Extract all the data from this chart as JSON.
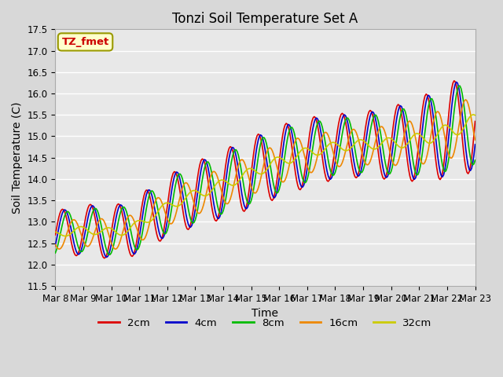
{
  "title": "Tonzi Soil Temperature Set A",
  "ylabel": "Soil Temperature (C)",
  "xlabel": "Time",
  "ylim": [
    11.5,
    17.5
  ],
  "n_days": 15,
  "x_tick_labels": [
    "Mar 8",
    "Mar 9",
    "Mar 10",
    "Mar 11",
    "Mar 12",
    "Mar 13",
    "Mar 14",
    "Mar 15",
    "Mar 16",
    "Mar 17",
    "Mar 18",
    "Mar 19",
    "Mar 20",
    "Mar 21",
    "Mar 22",
    "Mar 23"
  ],
  "colors": {
    "2cm": "#dd0000",
    "4cm": "#0000cc",
    "8cm": "#00bb00",
    "16cm": "#ee8800",
    "32cm": "#cccc00"
  },
  "legend_label": "TZ_fmet",
  "legend_box_facecolor": "#ffffcc",
  "legend_box_edgecolor": "#999900",
  "plot_bg_color": "#e8e8e8",
  "grid_color": "#ffffff",
  "title_fontsize": 12,
  "axis_label_fontsize": 10,
  "tick_fontsize": 8.5
}
